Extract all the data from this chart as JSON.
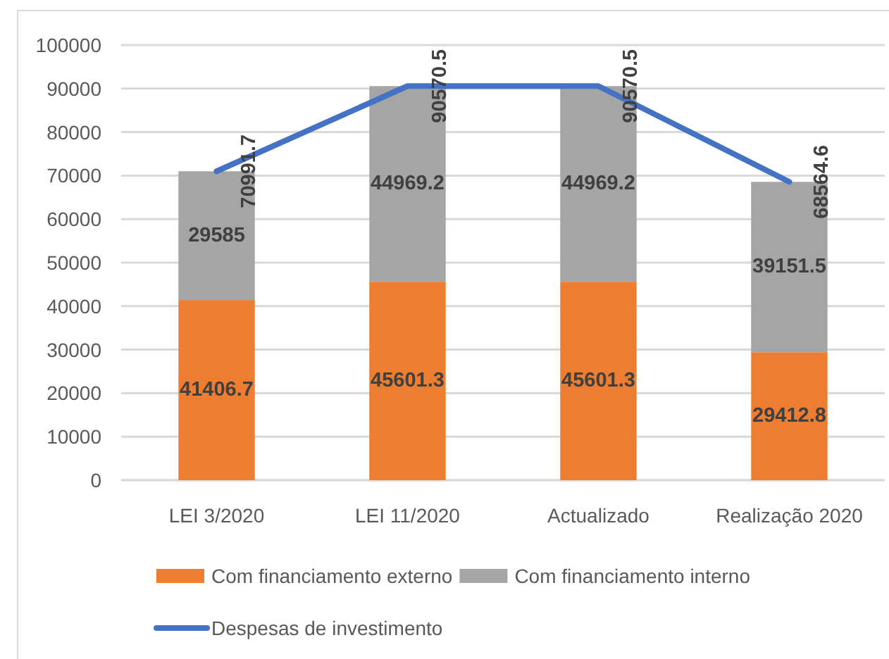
{
  "chart_data": {
    "type": "bar",
    "stacked": true,
    "categories": [
      "LEI 3/2020",
      "LEI 11/2020",
      "Actualizado",
      "Realização 2020"
    ],
    "series": [
      {
        "name": "Com financiamento externo",
        "color": "#ed7d31",
        "values": [
          41406.7,
          45601.3,
          45601.3,
          29412.8
        ]
      },
      {
        "name": "Com financiamento interno",
        "color": "#a5a5a5",
        "values": [
          29585,
          44969.2,
          44969.2,
          39151.5
        ]
      },
      {
        "name": "Despesas de investimento",
        "type": "line",
        "color": "#4472c4",
        "values": [
          70991.7,
          90570.5,
          90570.5,
          68564.6
        ]
      }
    ],
    "ylim": [
      0,
      100000
    ],
    "yticks": [
      0,
      10000,
      20000,
      30000,
      40000,
      50000,
      60000,
      70000,
      80000,
      90000,
      100000
    ],
    "grid": "y",
    "legend": "bottom",
    "data_labels": true
  }
}
